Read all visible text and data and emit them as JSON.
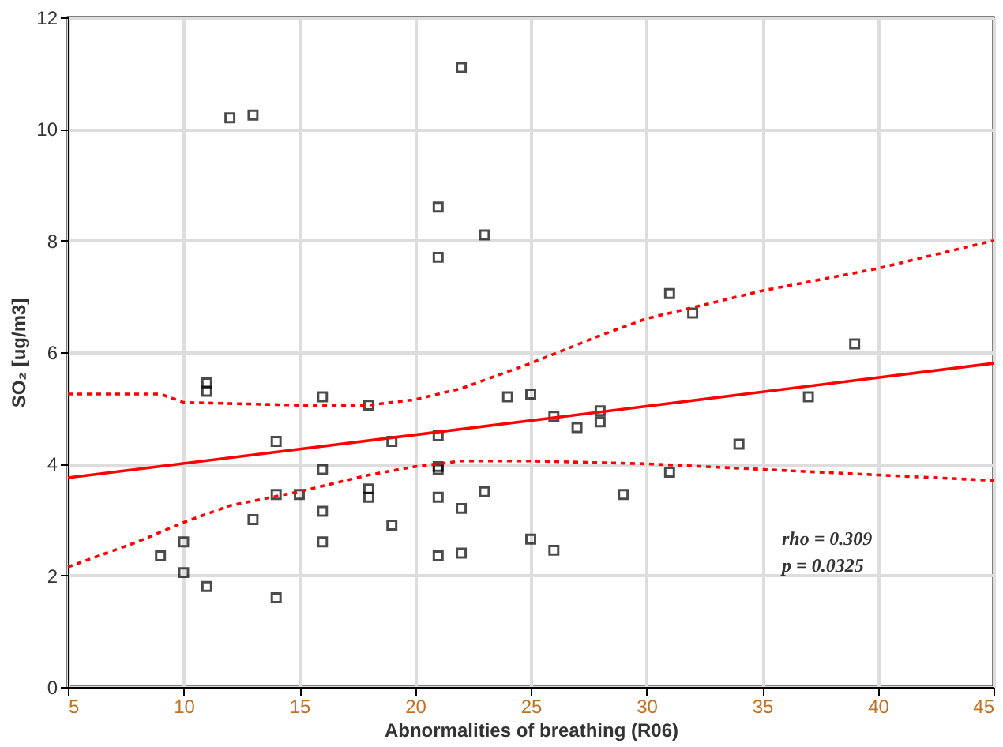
{
  "chart_data": {
    "type": "scatter",
    "xlabel": "Abnormalities of breathing (R06)",
    "ylabel": "SO₂ [ug/m3]",
    "xlim": [
      5,
      45
    ],
    "xticks": [
      5,
      10,
      15,
      20,
      25,
      30,
      35,
      40,
      45
    ],
    "ylim": [
      0,
      12
    ],
    "yticks": [
      0,
      2,
      4,
      6,
      8,
      10,
      12
    ],
    "grid": true,
    "annotations": [
      "rho = 0.309",
      "p = 0.0325"
    ],
    "series": [
      {
        "type": "scatter",
        "marker": "square",
        "color": "#000000",
        "x": [
          9,
          10,
          10,
          11,
          11,
          11,
          12,
          13,
          13,
          14,
          14,
          14,
          15,
          16,
          16,
          16,
          16,
          18,
          18,
          18,
          19,
          19,
          21,
          21,
          21,
          21,
          21,
          21,
          21,
          22,
          22,
          22,
          23,
          23,
          24,
          25,
          25,
          26,
          26,
          27,
          28,
          28,
          29,
          31,
          31,
          32,
          34,
          37,
          39
        ],
        "values": [
          2.35,
          2.6,
          2.05,
          1.8,
          5.45,
          5.3,
          10.2,
          10.25,
          3.0,
          4.4,
          3.45,
          1.6,
          3.45,
          5.2,
          3.9,
          3.15,
          2.6,
          5.05,
          3.55,
          3.4,
          4.4,
          2.9,
          8.6,
          7.7,
          4.5,
          3.95,
          3.9,
          3.4,
          2.35,
          11.1,
          3.2,
          2.4,
          8.1,
          3.5,
          5.2,
          5.25,
          2.65,
          4.85,
          2.45,
          4.65,
          4.95,
          4.75,
          3.45,
          7.05,
          3.85,
          6.7,
          4.35,
          5.2,
          6.15
        ]
      },
      {
        "type": "line",
        "line_style": "solid",
        "color": "#ff0000",
        "x": [
          5,
          45
        ],
        "values": [
          3.75,
          5.8
        ]
      },
      {
        "type": "line",
        "line_style": "dotted",
        "color": "#ff0000",
        "x": [
          5,
          9,
          10,
          15,
          18,
          20,
          22,
          25,
          28,
          30,
          35,
          40,
          45
        ],
        "values": [
          5.25,
          5.25,
          5.1,
          5.05,
          5.05,
          5.15,
          5.35,
          5.8,
          6.3,
          6.6,
          7.1,
          7.5,
          8.0
        ]
      },
      {
        "type": "line",
        "line_style": "dotted",
        "color": "#ff0000",
        "x": [
          5,
          8,
          10,
          12,
          15,
          18,
          20,
          22,
          25,
          30,
          35,
          40,
          45
        ],
        "values": [
          2.15,
          2.6,
          2.95,
          3.25,
          3.5,
          3.8,
          3.95,
          4.05,
          4.05,
          4.0,
          3.9,
          3.8,
          3.7
        ]
      }
    ]
  }
}
